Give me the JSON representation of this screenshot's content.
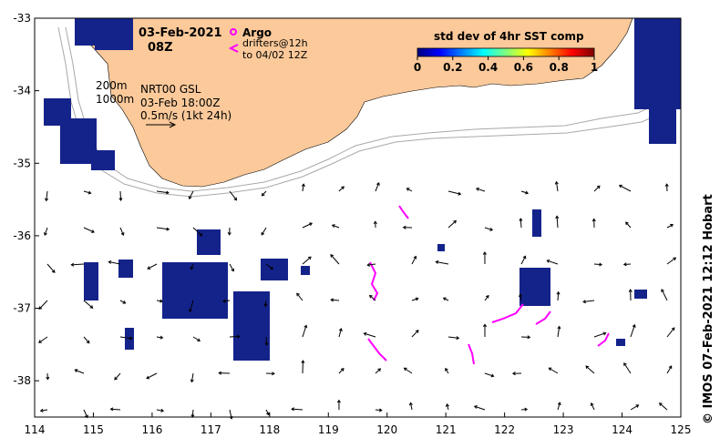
{
  "map": {
    "lon_range": [
      114,
      125
    ],
    "lat_range": [
      -38.5,
      -33
    ],
    "x_ticks": [
      "114",
      "115",
      "116",
      "117",
      "118",
      "119",
      "120",
      "121",
      "122",
      "123",
      "124",
      "125"
    ],
    "y_ticks": [
      "-33",
      "-34",
      "-35",
      "-36",
      "-37",
      "-38"
    ],
    "land_color": "#fbc99a",
    "ocean_color": "#ffffff",
    "contour_color": "#a9a9a9",
    "sst_std_color": "#14238a"
  },
  "annotations": {
    "date": "03-Feb-2021",
    "time": "08Z",
    "argo_label": "Argo",
    "drifters_line1": "drifters@12h",
    "drifters_line2": "to 04/02 12Z",
    "contour_200": "200m",
    "contour_1000": "1000m",
    "nrt_line1": "NRT00 GSL",
    "nrt_line2": "03-Feb 18:00Z",
    "nrt_line3": "0.5m/s (1kt 24h)"
  },
  "colorbar": {
    "title": "std dev of 4hr SST comp",
    "ticks": [
      "0",
      "0.2",
      "0.4",
      "0.6",
      "0.8",
      "1"
    ],
    "colors": [
      "#00007f",
      "#0000ff",
      "#007fff",
      "#00ffff",
      "#7fff7f",
      "#ffff00",
      "#ff7f00",
      "#ff0000",
      "#7f0000"
    ]
  },
  "side_label": "© IMOS 07-Feb-2021 12:12 Hobart",
  "icons": {
    "argo": "argo-float-marker-icon",
    "drifter": "drifter-chevron-icon"
  },
  "marker_color": "#ff00ff"
}
